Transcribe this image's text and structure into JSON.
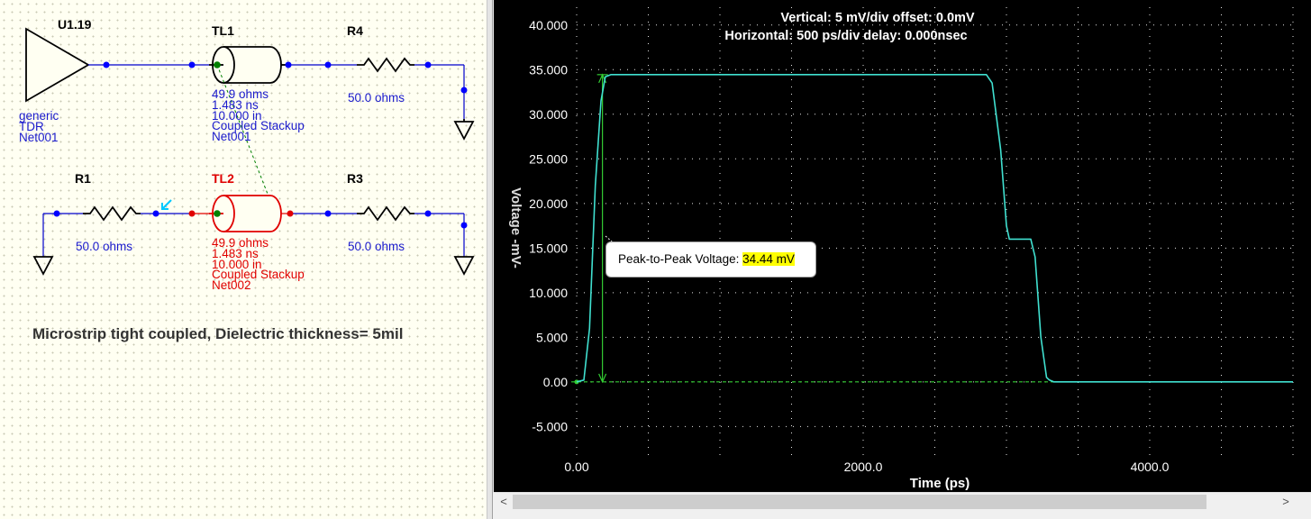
{
  "schematic": {
    "driver": {
      "ref": "U1.19",
      "props": [
        "generic",
        "TDR",
        "Net001"
      ]
    },
    "tl1": {
      "ref": "TL1",
      "props": [
        "49.9 ohms",
        "1.483 ns",
        "10.000 in",
        "Coupled Stackup",
        "Net001"
      ]
    },
    "tl2": {
      "ref": "TL2",
      "props": [
        "49.9 ohms",
        "1.483 ns",
        "10.000 in",
        "Coupled Stackup",
        "Net002"
      ]
    },
    "r4": {
      "ref": "R4",
      "value": "50.0 ohms"
    },
    "r1": {
      "ref": "R1",
      "value": "50.0 ohms"
    },
    "r3": {
      "ref": "R3",
      "value": "50.0 ohms"
    },
    "caption": "Microstrip tight coupled, Dielectric thickness= 5mil",
    "colors": {
      "net": "#0000cc",
      "node": "#0000ff",
      "aggressor": "#000000",
      "victim": "#e00000",
      "pin": "#008000",
      "probe": "#00c8ff"
    }
  },
  "scope": {
    "header_line1": "Vertical: 5 mV/div  offset: 0.0mV",
    "header_line2": "Horizontal: 500 ps/div  delay: 0.000nsec",
    "tooltip_label": "Peak-to-Peak Voltage:",
    "tooltip_value": "34.44 mV",
    "colors": {
      "background": "#000000",
      "trace": "#40e0d0",
      "grid": "#ffffff",
      "cursor": "#33cc33",
      "highlight": "#ffff00"
    }
  },
  "chart_data": {
    "type": "line",
    "xlabel": "Time  (ps)",
    "ylabel": "Voltage  -mV-",
    "x_ticks": [
      {
        "value": 0,
        "label": "0.00"
      },
      {
        "value": 2000,
        "label": "2000.0"
      },
      {
        "value": 4000,
        "label": "4000.0"
      }
    ],
    "y_ticks": [
      {
        "value": 40,
        "label": "40.000"
      },
      {
        "value": 35,
        "label": "35.000"
      },
      {
        "value": 30,
        "label": "30.000"
      },
      {
        "value": 25,
        "label": "25.000"
      },
      {
        "value": 20,
        "label": "20.000"
      },
      {
        "value": 15,
        "label": "15.000"
      },
      {
        "value": 10,
        "label": "10.000"
      },
      {
        "value": 5,
        "label": "5.000"
      },
      {
        "value": 0,
        "label": "0.00"
      },
      {
        "value": -5,
        "label": "-5.000"
      }
    ],
    "xlim": [
      0,
      5000
    ],
    "ylim": [
      -8.3,
      42
    ],
    "grid": true,
    "series": [
      {
        "x": [
          0,
          50,
          90,
          130,
          170,
          200,
          240,
          2860,
          2900,
          2960,
          3000,
          3020,
          3040,
          3070,
          3090,
          3120,
          3170,
          3200,
          3240,
          3280,
          3300,
          3330,
          5000
        ],
        "y": [
          0,
          0.2,
          6,
          22,
          31.5,
          34.2,
          34.44,
          34.44,
          33.5,
          26,
          17.5,
          16,
          16,
          16,
          16,
          16,
          16,
          14,
          5,
          0.5,
          0.2,
          0,
          0
        ]
      }
    ],
    "cursor": {
      "x": 180,
      "y_low": 0,
      "y_high": 34.44
    }
  },
  "scrollbar": {
    "left_arrow": "<",
    "right_arrow": ">"
  }
}
